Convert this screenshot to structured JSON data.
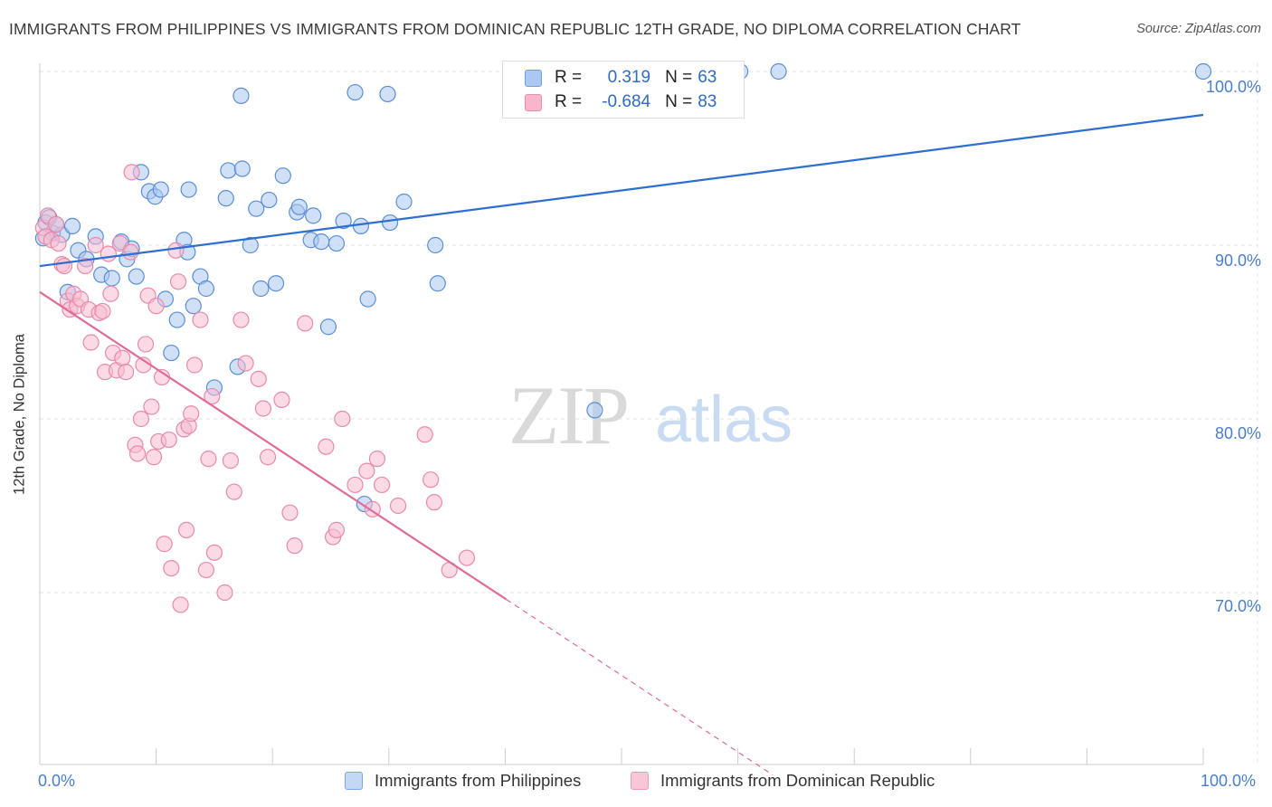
{
  "title": "IMMIGRANTS FROM PHILIPPINES VS IMMIGRANTS FROM DOMINICAN REPUBLIC 12TH GRADE, NO DIPLOMA CORRELATION CHART",
  "source": "Source: ZipAtlas.com",
  "legend": {
    "r_label": "R =",
    "n_label": "N =",
    "rows": [
      {
        "r": "0.319",
        "n": "63",
        "color": "#aac8f0",
        "border": "#6f9fe0"
      },
      {
        "r": "-0.684",
        "n": "83",
        "color": "#f7b6cc",
        "border": "#ec8fae"
      }
    ]
  },
  "watermark": {
    "zip": "ZIP",
    "atlas": "atlas"
  },
  "colors": {
    "blue_fill": "#aac8f0",
    "blue_stroke": "#5b8ed6",
    "blue_line": "#2c6fd1",
    "pink_fill": "#f7bcd0",
    "pink_stroke": "#e88aab",
    "pink_line": "#e06b96",
    "grid": "#e3e3e3",
    "tick_text": "#4a7fc8"
  },
  "chart_data": {
    "type": "scatter",
    "title": "IMMIGRANTS FROM PHILIPPINES VS IMMIGRANTS FROM DOMINICAN REPUBLIC 12TH GRADE, NO DIPLOMA CORRELATION CHART",
    "xlabel": "",
    "ylabel": "12th Grade, No Diploma",
    "xlim": [
      0,
      100
    ],
    "ylim": [
      59.5,
      100.5
    ],
    "x_tick_labels": [
      "0.0%",
      "100.0%"
    ],
    "y_ticks": [
      70,
      80,
      90,
      100
    ],
    "y_tick_labels": [
      "70.0%",
      "80.0%",
      "90.0%",
      "100.0%"
    ],
    "grid": true,
    "legend_position": "top-center",
    "series": [
      {
        "name": "Immigrants from Philippines",
        "r": 0.319,
        "n": 63,
        "trend": {
          "x": [
            0,
            100
          ],
          "y": [
            88.8,
            97.5
          ],
          "dashed_from_x": null
        },
        "points": [
          {
            "x": 0.5,
            "y": 91.3
          },
          {
            "x": 1.1,
            "y": 90.7
          },
          {
            "x": 1.9,
            "y": 90.6
          },
          {
            "x": 2.4,
            "y": 87.3
          },
          {
            "x": 2.8,
            "y": 91.1
          },
          {
            "x": 3.3,
            "y": 89.7
          },
          {
            "x": 4.0,
            "y": 89.2
          },
          {
            "x": 4.8,
            "y": 90.5
          },
          {
            "x": 5.3,
            "y": 88.3
          },
          {
            "x": 6.2,
            "y": 88.1
          },
          {
            "x": 7.0,
            "y": 90.2
          },
          {
            "x": 7.5,
            "y": 89.2
          },
          {
            "x": 7.9,
            "y": 89.8
          },
          {
            "x": 8.3,
            "y": 88.2
          },
          {
            "x": 8.7,
            "y": 94.2
          },
          {
            "x": 9.4,
            "y": 93.1
          },
          {
            "x": 9.9,
            "y": 92.8
          },
          {
            "x": 10.4,
            "y": 93.2
          },
          {
            "x": 10.8,
            "y": 86.9
          },
          {
            "x": 11.3,
            "y": 83.8
          },
          {
            "x": 11.8,
            "y": 85.7
          },
          {
            "x": 12.4,
            "y": 90.3
          },
          {
            "x": 12.7,
            "y": 89.6
          },
          {
            "x": 12.8,
            "y": 93.2
          },
          {
            "x": 13.2,
            "y": 86.5
          },
          {
            "x": 13.8,
            "y": 88.2
          },
          {
            "x": 14.3,
            "y": 87.5
          },
          {
            "x": 15.0,
            "y": 81.8
          },
          {
            "x": 16.0,
            "y": 92.7
          },
          {
            "x": 16.2,
            "y": 94.3
          },
          {
            "x": 17.0,
            "y": 83.0
          },
          {
            "x": 17.4,
            "y": 94.4
          },
          {
            "x": 18.1,
            "y": 90.0
          },
          {
            "x": 18.6,
            "y": 92.1
          },
          {
            "x": 19.0,
            "y": 87.5
          },
          {
            "x": 19.7,
            "y": 92.6
          },
          {
            "x": 20.3,
            "y": 87.8
          },
          {
            "x": 20.9,
            "y": 94.0
          },
          {
            "x": 22.1,
            "y": 91.9
          },
          {
            "x": 22.3,
            "y": 92.2
          },
          {
            "x": 23.3,
            "y": 90.3
          },
          {
            "x": 23.5,
            "y": 91.7
          },
          {
            "x": 24.2,
            "y": 90.2
          },
          {
            "x": 24.8,
            "y": 85.3
          },
          {
            "x": 25.5,
            "y": 90.1
          },
          {
            "x": 26.1,
            "y": 91.4
          },
          {
            "x": 27.1,
            "y": 98.8
          },
          {
            "x": 27.6,
            "y": 91.1
          },
          {
            "x": 27.9,
            "y": 75.1
          },
          {
            "x": 28.2,
            "y": 86.9
          },
          {
            "x": 29.9,
            "y": 98.7
          },
          {
            "x": 30.1,
            "y": 91.3
          },
          {
            "x": 31.3,
            "y": 92.5
          },
          {
            "x": 34.0,
            "y": 90.0
          },
          {
            "x": 34.2,
            "y": 87.8
          },
          {
            "x": 17.3,
            "y": 98.6
          },
          {
            "x": 47.7,
            "y": 80.5
          },
          {
            "x": 60.2,
            "y": 100.0
          },
          {
            "x": 63.5,
            "y": 100.0
          },
          {
            "x": 100.0,
            "y": 100.0
          },
          {
            "x": 0.3,
            "y": 90.4
          },
          {
            "x": 0.8,
            "y": 91.6
          },
          {
            "x": 1.4,
            "y": 91.2
          }
        ]
      },
      {
        "name": "Immigrants from Dominican Republic",
        "r": -0.684,
        "n": 83,
        "trend": {
          "x": [
            0,
            63.0
          ],
          "y": [
            87.3,
            59.5
          ],
          "dashed_from_x": 40.1
        },
        "points": [
          {
            "x": 0.3,
            "y": 91.0
          },
          {
            "x": 0.5,
            "y": 90.5
          },
          {
            "x": 0.7,
            "y": 91.7
          },
          {
            "x": 1.0,
            "y": 90.3
          },
          {
            "x": 1.4,
            "y": 91.2
          },
          {
            "x": 1.6,
            "y": 90.1
          },
          {
            "x": 1.9,
            "y": 88.9
          },
          {
            "x": 2.1,
            "y": 88.8
          },
          {
            "x": 2.4,
            "y": 86.8
          },
          {
            "x": 2.6,
            "y": 86.3
          },
          {
            "x": 2.9,
            "y": 87.2
          },
          {
            "x": 3.2,
            "y": 86.5
          },
          {
            "x": 3.5,
            "y": 86.9
          },
          {
            "x": 3.9,
            "y": 88.8
          },
          {
            "x": 4.2,
            "y": 86.3
          },
          {
            "x": 4.4,
            "y": 84.4
          },
          {
            "x": 4.8,
            "y": 90.0
          },
          {
            "x": 5.1,
            "y": 86.1
          },
          {
            "x": 5.4,
            "y": 86.2
          },
          {
            "x": 5.6,
            "y": 82.7
          },
          {
            "x": 5.9,
            "y": 89.5
          },
          {
            "x": 6.1,
            "y": 87.2
          },
          {
            "x": 6.3,
            "y": 83.8
          },
          {
            "x": 6.6,
            "y": 82.8
          },
          {
            "x": 6.9,
            "y": 90.1
          },
          {
            "x": 7.1,
            "y": 83.5
          },
          {
            "x": 7.4,
            "y": 82.7
          },
          {
            "x": 7.8,
            "y": 89.6
          },
          {
            "x": 7.9,
            "y": 94.2
          },
          {
            "x": 8.2,
            "y": 78.5
          },
          {
            "x": 8.4,
            "y": 78.0
          },
          {
            "x": 8.7,
            "y": 80.0
          },
          {
            "x": 8.9,
            "y": 83.1
          },
          {
            "x": 9.1,
            "y": 84.3
          },
          {
            "x": 9.3,
            "y": 87.1
          },
          {
            "x": 9.6,
            "y": 80.7
          },
          {
            "x": 9.8,
            "y": 77.8
          },
          {
            "x": 10.0,
            "y": 86.5
          },
          {
            "x": 10.2,
            "y": 78.7
          },
          {
            "x": 10.5,
            "y": 82.4
          },
          {
            "x": 10.7,
            "y": 72.8
          },
          {
            "x": 11.1,
            "y": 78.8
          },
          {
            "x": 11.3,
            "y": 71.4
          },
          {
            "x": 11.7,
            "y": 89.7
          },
          {
            "x": 11.9,
            "y": 87.9
          },
          {
            "x": 12.1,
            "y": 69.3
          },
          {
            "x": 12.4,
            "y": 79.4
          },
          {
            "x": 12.6,
            "y": 73.6
          },
          {
            "x": 12.8,
            "y": 79.6
          },
          {
            "x": 13.0,
            "y": 80.3
          },
          {
            "x": 13.3,
            "y": 83.1
          },
          {
            "x": 13.8,
            "y": 85.7
          },
          {
            "x": 14.3,
            "y": 71.3
          },
          {
            "x": 14.5,
            "y": 77.7
          },
          {
            "x": 14.8,
            "y": 81.3
          },
          {
            "x": 15.0,
            "y": 72.3
          },
          {
            "x": 15.9,
            "y": 70.0
          },
          {
            "x": 16.4,
            "y": 77.6
          },
          {
            "x": 16.7,
            "y": 75.8
          },
          {
            "x": 17.3,
            "y": 85.7
          },
          {
            "x": 17.7,
            "y": 83.2
          },
          {
            "x": 18.8,
            "y": 82.3
          },
          {
            "x": 19.2,
            "y": 80.6
          },
          {
            "x": 19.6,
            "y": 77.8
          },
          {
            "x": 20.8,
            "y": 81.1
          },
          {
            "x": 21.5,
            "y": 74.6
          },
          {
            "x": 21.9,
            "y": 72.7
          },
          {
            "x": 22.8,
            "y": 85.5
          },
          {
            "x": 24.6,
            "y": 78.4
          },
          {
            "x": 25.2,
            "y": 73.2
          },
          {
            "x": 25.5,
            "y": 73.6
          },
          {
            "x": 26.0,
            "y": 80.0
          },
          {
            "x": 27.1,
            "y": 76.2
          },
          {
            "x": 28.1,
            "y": 77.0
          },
          {
            "x": 28.6,
            "y": 74.8
          },
          {
            "x": 29.0,
            "y": 77.7
          },
          {
            "x": 29.4,
            "y": 76.2
          },
          {
            "x": 30.8,
            "y": 75.0
          },
          {
            "x": 33.1,
            "y": 79.1
          },
          {
            "x": 33.6,
            "y": 76.5
          },
          {
            "x": 33.9,
            "y": 75.2
          },
          {
            "x": 35.2,
            "y": 71.3
          },
          {
            "x": 36.7,
            "y": 72.0
          }
        ]
      }
    ]
  },
  "bottom_legend": [
    {
      "label": "Immigrants from Philippines"
    },
    {
      "label": "Immigrants from Dominican Republic"
    }
  ]
}
